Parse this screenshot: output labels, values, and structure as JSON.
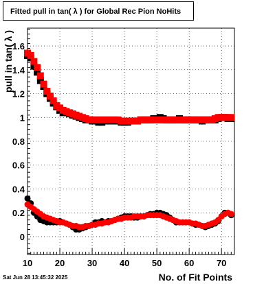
{
  "header": {
    "title": "Fitted pull in tan( λ ) for Global Rec Pion NoHits"
  },
  "footer": {
    "timestamp": "Sat Jun 28 13:45:32 2025"
  },
  "chart_data": {
    "type": "scatter",
    "title": "Fitted pull in tan( λ ) for Global Rec Pion NoHits",
    "xlabel": "No. of Fit Points",
    "ylabel": "pull in tan( λ )",
    "xlim": [
      10,
      74
    ],
    "ylim": [
      -0.15,
      1.75
    ],
    "xticks": [
      10,
      20,
      30,
      40,
      50,
      60,
      70
    ],
    "yticks": [
      0,
      0.2,
      0.4,
      0.6,
      0.8,
      1,
      1.2,
      1.4,
      1.6
    ],
    "ytick_labels": [
      "0",
      "0.2",
      "0.4",
      "0.6",
      "0.8",
      "1",
      "1.2",
      "1.4",
      "1.6"
    ],
    "grid": true,
    "series": [
      {
        "color": "#000000",
        "marker": "square",
        "x": [
          10,
          11,
          12,
          13,
          14,
          15,
          16,
          17,
          18,
          19,
          20,
          21,
          22,
          23,
          24,
          25,
          26,
          27,
          28,
          29,
          30,
          31,
          32,
          33,
          34,
          35,
          36,
          37,
          38,
          39,
          40,
          41,
          42,
          43,
          44,
          45,
          46,
          47,
          48,
          49,
          50,
          51,
          52,
          53,
          54,
          55,
          56,
          57,
          58,
          59,
          60,
          61,
          62,
          63,
          64,
          65,
          66,
          67,
          68,
          69,
          70,
          71,
          72,
          73
        ],
        "y": [
          1.52,
          1.5,
          1.43,
          1.38,
          1.31,
          1.26,
          1.2,
          1.16,
          1.12,
          1.09,
          1.06,
          1.04,
          1.04,
          1.03,
          1.02,
          1.01,
          1.0,
          0.99,
          0.98,
          0.98,
          0.97,
          0.97,
          0.96,
          0.96,
          0.97,
          0.97,
          0.97,
          0.97,
          0.97,
          0.96,
          0.96,
          0.96,
          0.97,
          0.97,
          0.97,
          0.98,
          0.98,
          0.98,
          0.98,
          0.99,
          0.99,
          1.0,
          0.99,
          0.98,
          0.98,
          0.98,
          0.98,
          0.99,
          0.98,
          0.98,
          0.98,
          0.98,
          0.98,
          0.98,
          0.97,
          0.98,
          0.98,
          0.98,
          0.98,
          0.99,
          1.0,
          1.0,
          0.99,
          0.99
        ]
      },
      {
        "color": "#ff0000",
        "marker": "square",
        "x": [
          10,
          11,
          12,
          13,
          14,
          15,
          16,
          17,
          18,
          19,
          20,
          21,
          22,
          23,
          24,
          25,
          26,
          27,
          28,
          29,
          30,
          31,
          32,
          33,
          34,
          35,
          36,
          37,
          38,
          39,
          40,
          41,
          42,
          43,
          44,
          45,
          46,
          47,
          48,
          49,
          50,
          51,
          52,
          53,
          54,
          55,
          56,
          57,
          58,
          59,
          60,
          61,
          62,
          63,
          64,
          65,
          66,
          67,
          68,
          69,
          70,
          71,
          72,
          73
        ],
        "y": [
          1.54,
          1.52,
          1.47,
          1.42,
          1.35,
          1.28,
          1.22,
          1.18,
          1.14,
          1.1,
          1.08,
          1.06,
          1.05,
          1.04,
          1.03,
          1.02,
          1.01,
          1.0,
          0.99,
          0.98,
          0.98,
          0.98,
          0.98,
          0.98,
          0.98,
          0.98,
          0.98,
          0.98,
          0.98,
          0.97,
          0.97,
          0.97,
          0.97,
          0.97,
          0.97,
          0.98,
          0.98,
          0.98,
          0.98,
          0.98,
          0.98,
          0.98,
          0.98,
          0.98,
          0.98,
          0.98,
          0.98,
          0.98,
          0.98,
          0.98,
          0.98,
          0.98,
          0.98,
          0.98,
          0.98,
          0.98,
          0.98,
          0.98,
          0.99,
          1.0,
          1.0,
          1.0,
          1.0,
          1.0
        ]
      },
      {
        "color": "#000000",
        "marker": "circle",
        "x": [
          10,
          11,
          12,
          13,
          14,
          15,
          16,
          17,
          18,
          19,
          20,
          21,
          22,
          23,
          24,
          25,
          26,
          27,
          28,
          29,
          30,
          31,
          32,
          33,
          34,
          35,
          36,
          37,
          38,
          39,
          40,
          41,
          42,
          43,
          44,
          45,
          46,
          47,
          48,
          49,
          50,
          51,
          52,
          53,
          54,
          55,
          56,
          57,
          58,
          59,
          60,
          61,
          62,
          63,
          64,
          65,
          66,
          67,
          68,
          69,
          70,
          71,
          72,
          73
        ],
        "y": [
          0.32,
          0.28,
          0.2,
          0.17,
          0.14,
          0.13,
          0.12,
          0.12,
          0.12,
          0.12,
          0.13,
          0.12,
          0.11,
          0.1,
          0.08,
          0.06,
          0.06,
          0.07,
          0.08,
          0.09,
          0.1,
          0.12,
          0.12,
          0.13,
          0.12,
          0.13,
          0.13,
          0.14,
          0.15,
          0.16,
          0.17,
          0.17,
          0.17,
          0.16,
          0.16,
          0.17,
          0.17,
          0.18,
          0.19,
          0.19,
          0.2,
          0.2,
          0.19,
          0.18,
          0.16,
          0.14,
          0.12,
          0.12,
          0.12,
          0.12,
          0.12,
          0.11,
          0.1,
          0.1,
          0.09,
          0.08,
          0.09,
          0.1,
          0.11,
          0.13,
          0.17,
          0.2,
          0.2,
          0.18
        ]
      },
      {
        "color": "#ff0000",
        "marker": "circle",
        "x": [
          10,
          11,
          12,
          13,
          14,
          15,
          16,
          17,
          18,
          19,
          20,
          21,
          22,
          23,
          24,
          25,
          26,
          27,
          28,
          29,
          30,
          31,
          32,
          33,
          34,
          35,
          36,
          37,
          38,
          39,
          40,
          41,
          42,
          43,
          44,
          45,
          46,
          47,
          48,
          49,
          50,
          51,
          52,
          53,
          54,
          55,
          56,
          57,
          58,
          59,
          60,
          61,
          62,
          63,
          64,
          65,
          66,
          67,
          68,
          69,
          70,
          71,
          72,
          73
        ],
        "y": [
          0.27,
          0.25,
          0.23,
          0.21,
          0.19,
          0.17,
          0.16,
          0.15,
          0.14,
          0.13,
          0.12,
          0.12,
          0.11,
          0.1,
          0.09,
          0.09,
          0.08,
          0.08,
          0.09,
          0.09,
          0.1,
          0.1,
          0.11,
          0.11,
          0.12,
          0.12,
          0.13,
          0.14,
          0.15,
          0.15,
          0.16,
          0.16,
          0.16,
          0.17,
          0.17,
          0.17,
          0.17,
          0.18,
          0.18,
          0.18,
          0.18,
          0.18,
          0.17,
          0.16,
          0.15,
          0.14,
          0.13,
          0.12,
          0.12,
          0.12,
          0.12,
          0.11,
          0.11,
          0.1,
          0.09,
          0.09,
          0.1,
          0.11,
          0.12,
          0.14,
          0.17,
          0.19,
          0.2,
          0.19
        ]
      }
    ]
  }
}
